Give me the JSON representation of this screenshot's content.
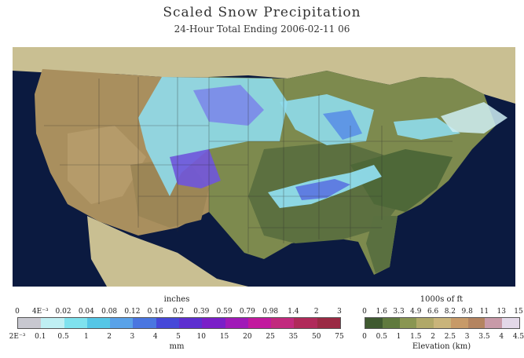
{
  "title": "Scaled Snow Precipitation",
  "subtitle": "24-Hour Total Ending 2006-02-11 06",
  "precip_legend": {
    "top_unit": "inches",
    "bottom_unit": "mm",
    "top_labels": [
      "0",
      "4E⁻³",
      "0.02",
      "0.04",
      "0.08",
      "0.12",
      "0.16",
      "0.2",
      "0.39",
      "0.59",
      "0.79",
      "0.98",
      "1.4",
      "2",
      "3"
    ],
    "bottom_labels": [
      "2E⁻³",
      "0.1",
      "0.5",
      "1",
      "2",
      "3",
      "4",
      "5",
      "10",
      "15",
      "20",
      "25",
      "35",
      "50",
      "75"
    ],
    "colors": [
      "#c8c8d0",
      "#bfeff3",
      "#7fe2ee",
      "#55c6e6",
      "#5aa2e8",
      "#4a76e0",
      "#4648d8",
      "#5d2fd0",
      "#7a1fc8",
      "#a01ab8",
      "#c21a9e",
      "#c22a7e",
      "#b02a5a",
      "#9a2a44"
    ]
  },
  "elevation_legend": {
    "top_unit": "1000s of ft",
    "bottom_unit": "Elevation (km)",
    "top_labels": [
      "0",
      "1.6",
      "3.3",
      "4.9",
      "6.6",
      "8.2",
      "9.8",
      "11",
      "13",
      "15"
    ],
    "bottom_labels": [
      "0",
      "0.5",
      "1",
      "1.5",
      "2",
      "2.5",
      "3",
      "3.5",
      "4",
      "4.5"
    ],
    "colors": [
      "#3f5a30",
      "#607a3e",
      "#8a9652",
      "#b0a868",
      "#c9b47a",
      "#c79a68",
      "#b48460",
      "#c89aa8",
      "#e3d8e8"
    ]
  }
}
